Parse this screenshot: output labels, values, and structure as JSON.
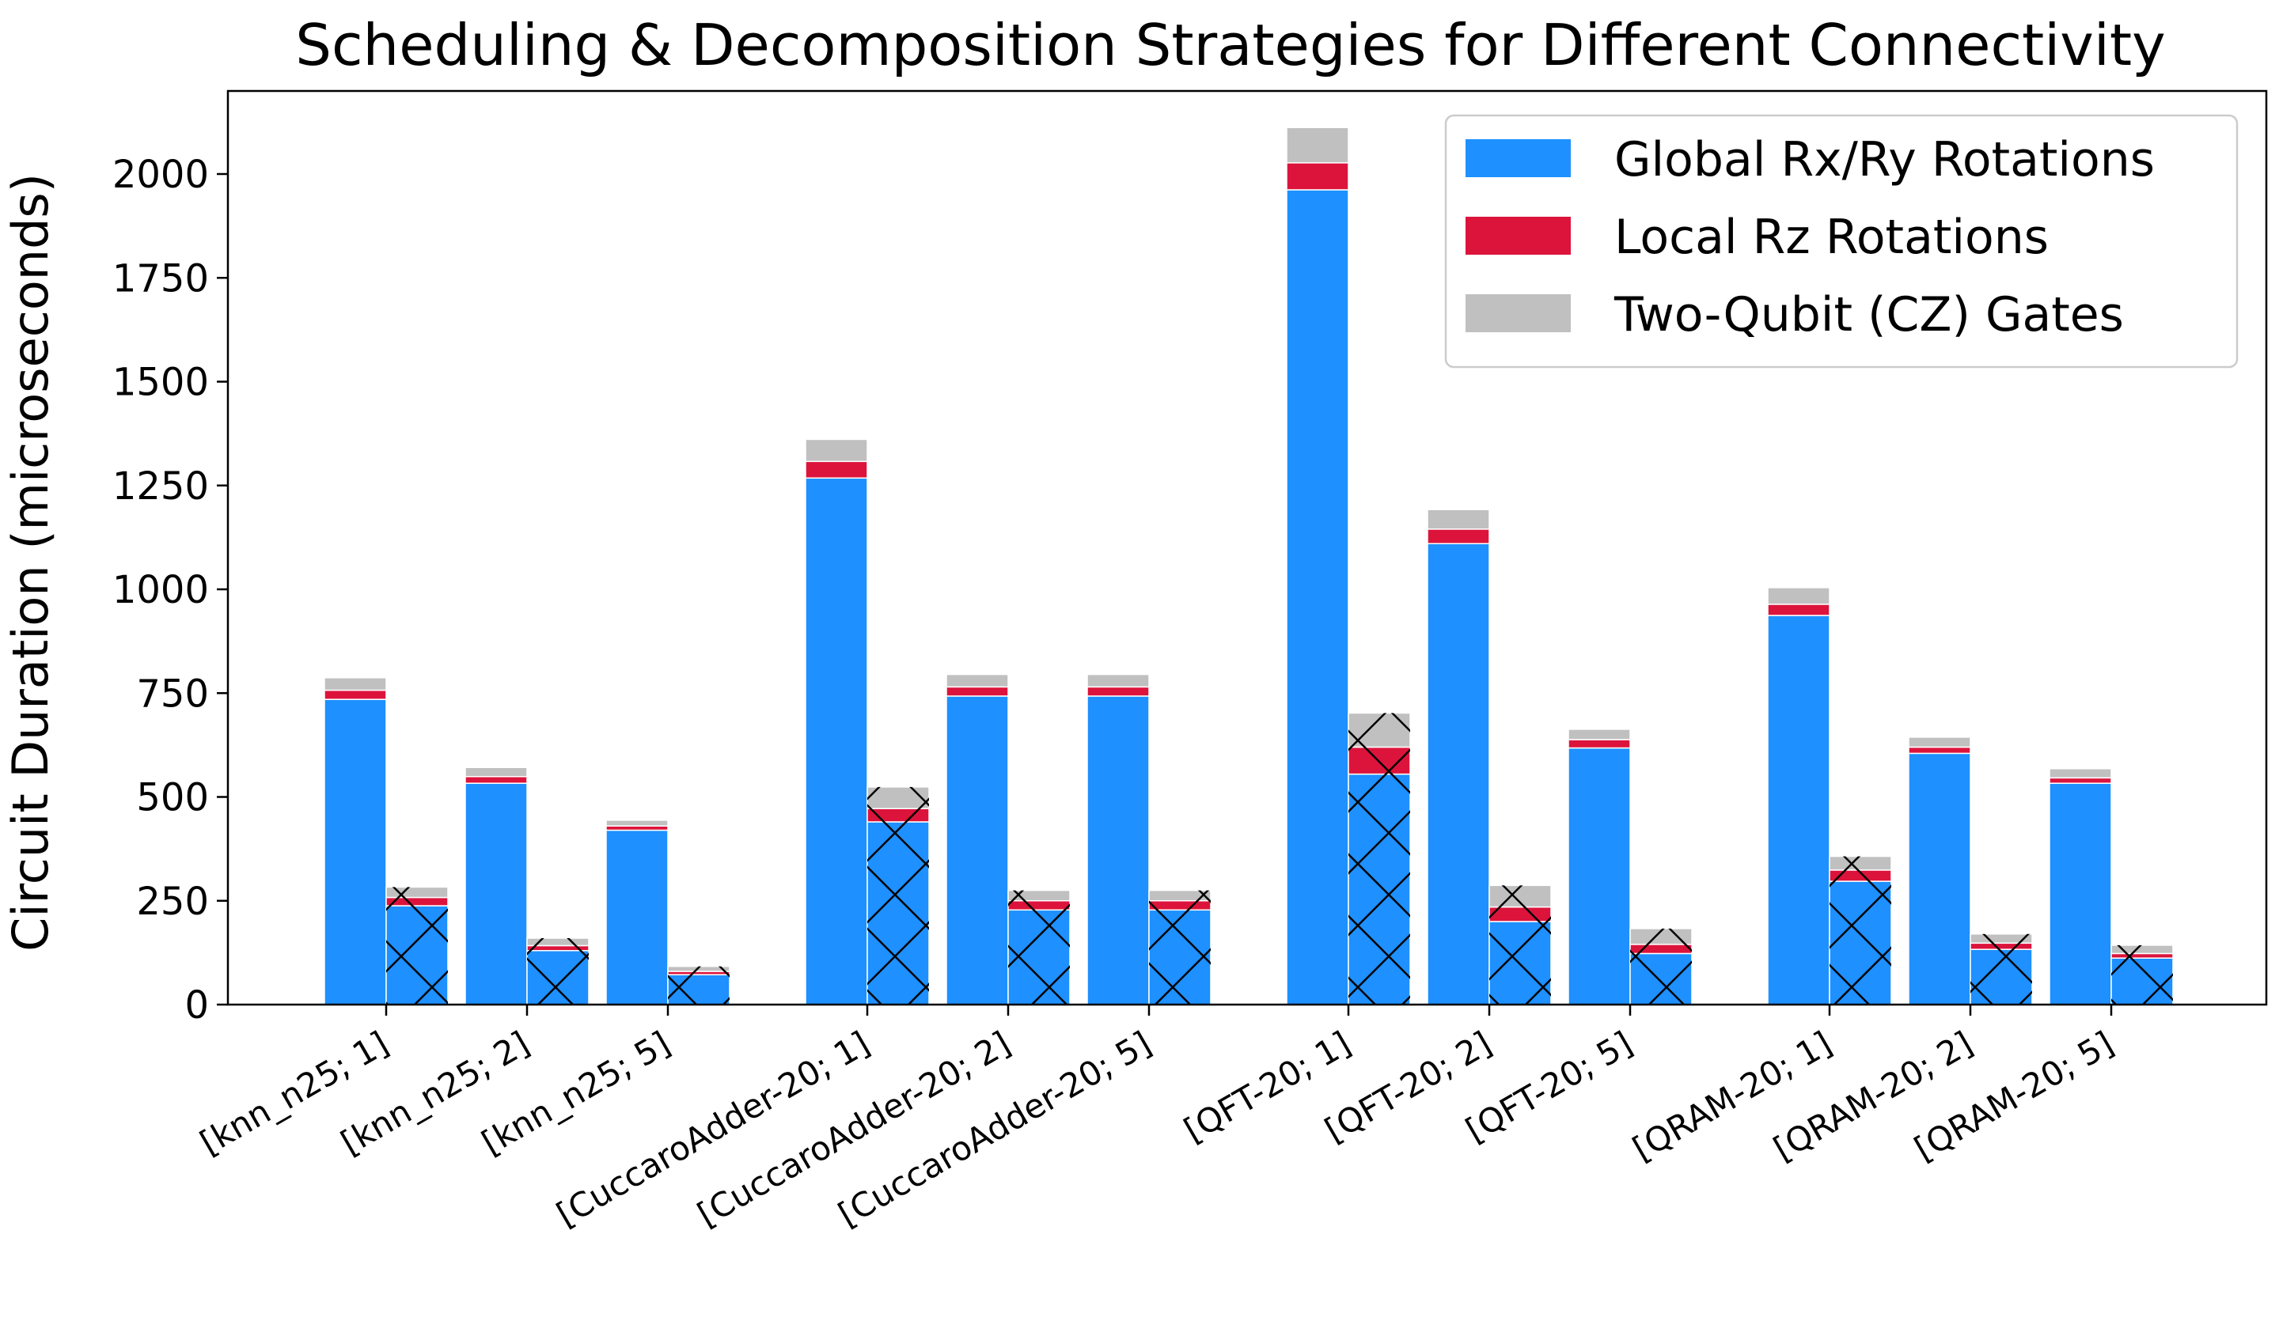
{
  "chart_data": {
    "type": "bar",
    "stacked": true,
    "title": "Scheduling & Decomposition Strategies for Different Connectivity",
    "xlabel": "",
    "ylabel": "Circuit Duration (microseconds)",
    "ylim": [
      0,
      2200
    ],
    "yticks": [
      0,
      250,
      500,
      750,
      1000,
      1250,
      1500,
      1750,
      2000
    ],
    "grid": false,
    "legend_position": "top-right",
    "categories": [
      "[knn_n25; 1]",
      "[knn_n25; 2]",
      "[knn_n25; 5]",
      "[CuccaroAdder-20; 1]",
      "[CuccaroAdder-20; 2]",
      "[CuccaroAdder-20; 5]",
      "[QFT-20; 1]",
      "[QFT-20; 2]",
      "[QFT-20; 5]",
      "[QRAM-20; 1]",
      "[QRAM-20; 2]",
      "[QRAM-20; 5]"
    ],
    "bar_variants": [
      "plain",
      "hatched"
    ],
    "series": [
      {
        "name": "Global Rx/Ry Rotations",
        "color": "#1e90ff",
        "plain": [
          735,
          533,
          420,
          1268,
          743,
          743,
          1962,
          1110,
          618,
          937,
          605,
          533
        ],
        "hatched": [
          238,
          130,
          72,
          440,
          228,
          228,
          555,
          200,
          123,
          297,
          133,
          112
        ]
      },
      {
        "name": "Local Rz Rotations",
        "color": "#dc143c",
        "plain": [
          22,
          16,
          10,
          40,
          22,
          22,
          65,
          35,
          20,
          27,
          15,
          13
        ],
        "hatched": [
          20,
          12,
          8,
          32,
          22,
          22,
          65,
          35,
          22,
          27,
          15,
          11
        ]
      },
      {
        "name": "Two-Qubit (CZ) Gates",
        "color": "#c0c0c0",
        "plain": [
          30,
          22,
          14,
          53,
          30,
          30,
          85,
          47,
          25,
          40,
          24,
          22
        ],
        "hatched": [
          25,
          18,
          12,
          52,
          25,
          25,
          82,
          52,
          38,
          33,
          22,
          20
        ]
      }
    ]
  }
}
